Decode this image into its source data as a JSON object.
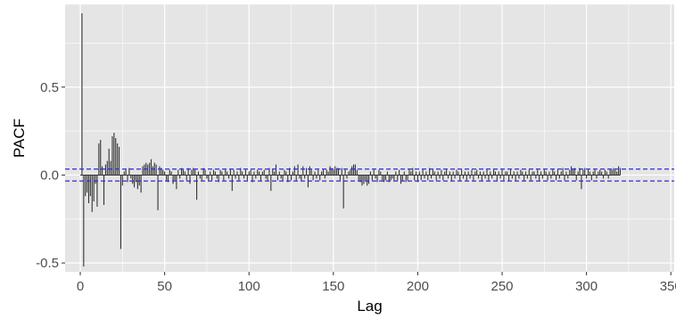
{
  "chart_data": {
    "type": "bar",
    "subtype": "pacf-correlogram",
    "xlabel": "Lag",
    "ylabel": "PACF",
    "xlim": [
      -9,
      352
    ],
    "ylim": [
      -0.55,
      0.97
    ],
    "x_ticks": [
      0,
      50,
      100,
      150,
      200,
      250,
      300,
      350
    ],
    "x_tick_labels": [
      "0",
      "50",
      "100",
      "150",
      "200",
      "250",
      "300",
      "350"
    ],
    "y_ticks": [
      -0.5,
      0.0,
      0.5
    ],
    "y_tick_labels": [
      "-0.5",
      "0.0",
      "0.5"
    ],
    "confidence_bounds": [
      -0.034,
      0.034
    ],
    "grid": true,
    "legend": "none",
    "colors": {
      "panel": "#e5e5e5",
      "grid": "#ffffff",
      "bar": "#333333",
      "bound": "#2b2bd9",
      "tick_text": "#4d4d4d"
    },
    "values": [
      0.92,
      -0.52,
      -0.12,
      -0.1,
      -0.16,
      -0.12,
      -0.21,
      -0.15,
      -0.05,
      -0.18,
      0.18,
      0.2,
      0.05,
      -0.17,
      0.06,
      0.08,
      0.15,
      0.08,
      0.22,
      0.24,
      0.21,
      0.18,
      0.16,
      -0.42,
      -0.06,
      0.02,
      0.03,
      -0.04,
      0.04,
      -0.02,
      -0.05,
      -0.07,
      -0.04,
      -0.08,
      -0.06,
      -0.1,
      0.05,
      0.06,
      0.07,
      0.06,
      0.07,
      0.09,
      0.05,
      0.07,
      0.06,
      -0.2,
      0.05,
      0.04,
      0.03,
      0.02,
      -0.03,
      -0.04,
      0.03,
      0.02,
      -0.05,
      -0.03,
      -0.08,
      0.03,
      -0.02,
      0.04,
      0.03,
      0.02,
      -0.03,
      0.04,
      -0.05,
      0.03,
      0.04,
      0.03,
      -0.14,
      0.02,
      -0.02,
      -0.03,
      0.04,
      0.03,
      -0.02,
      -0.03,
      0.02,
      -0.03,
      0.03,
      0.02,
      -0.02,
      -0.04,
      0.03,
      0.02,
      -0.03,
      0.03,
      0.02,
      -0.02,
      0.03,
      -0.09,
      0.03,
      -0.02,
      0.02,
      -0.03,
      0.04,
      0.02,
      -0.02,
      0.03,
      -0.03,
      0.02,
      0.03,
      -0.04,
      0.02,
      -0.02,
      0.03,
      0.02,
      -0.03,
      0.02,
      0.03,
      -0.02,
      -0.03,
      0.04,
      -0.09,
      0.03,
      0.02,
      0.06,
      -0.03,
      0.02,
      -0.02,
      -0.03,
      0.03,
      0.02,
      -0.04,
      0.04,
      -0.03,
      0.02,
      0.05,
      -0.03,
      0.06,
      -0.02,
      -0.03,
      0.05,
      -0.02,
      0.04,
      -0.07,
      0.05,
      0.03,
      -0.03,
      0.02,
      -0.02,
      0.03,
      -0.03,
      0.02,
      0.03,
      -0.02,
      0.03,
      0.02,
      0.05,
      0.04,
      0.03,
      0.05,
      0.04,
      0.04,
      -0.03,
      0.04,
      -0.19,
      0.03,
      -0.02,
      0.02,
      0.03,
      0.05,
      0.06,
      0.06,
      0.03,
      -0.03,
      -0.04,
      -0.06,
      -0.05,
      -0.03,
      -0.06,
      -0.05,
      0.02,
      -0.03,
      0.03,
      -0.02,
      -0.04,
      0.03,
      0.02,
      -0.03,
      -0.04,
      -0.03,
      0.02,
      -0.04,
      -0.03,
      -0.02,
      -0.03,
      0.02,
      -0.03,
      0.03,
      -0.05,
      -0.03,
      0.02,
      -0.04,
      -0.03,
      0.03,
      0.02,
      0.04,
      -0.03,
      0.02,
      -0.04,
      0.02,
      -0.03,
      0.03,
      -0.02,
      0.02,
      -0.03,
      0.04,
      -0.02,
      0.03,
      0.02,
      -0.03,
      0.02,
      -0.02,
      0.03,
      -0.03,
      0.02,
      0.03,
      -0.02,
      0.02,
      -0.03,
      0.02,
      -0.02,
      0.03,
      0.02,
      -0.03,
      0.03,
      -0.02,
      0.02,
      -0.03,
      0.02,
      -0.02,
      0.03,
      -0.03,
      0.02,
      0.03,
      -0.02,
      0.02,
      -0.03,
      0.02,
      -0.02,
      0.03,
      -0.03,
      0.02,
      -0.02,
      0.03,
      0.02,
      -0.03,
      0.02,
      -0.02,
      0.03,
      -0.03,
      0.02,
      0.02,
      -0.03,
      0.03,
      -0.02,
      0.02,
      -0.03,
      0.02,
      -0.02,
      0.03,
      0.02,
      -0.03,
      0.02,
      -0.02,
      0.03,
      -0.03,
      0.02,
      0.02,
      -0.02,
      0.03,
      -0.03,
      0.02,
      -0.02,
      0.03,
      0.02,
      -0.03,
      0.02,
      -0.02,
      0.03,
      0.02,
      -0.03,
      0.03,
      -0.02,
      0.02,
      0.04,
      -0.03,
      0.02,
      -0.02,
      0.03,
      0.05,
      0.03,
      0.04,
      -0.03,
      0.02,
      0.04,
      -0.08,
      0.03,
      0.04,
      -0.02,
      0.03,
      0.02,
      -0.03,
      0.02,
      0.03,
      -0.02,
      0.02,
      0.03,
      0.02,
      -0.02,
      0.03,
      0.02,
      -0.02,
      0.03,
      0.03,
      0.04,
      0.03,
      0.02,
      0.05,
      0.04
    ]
  }
}
